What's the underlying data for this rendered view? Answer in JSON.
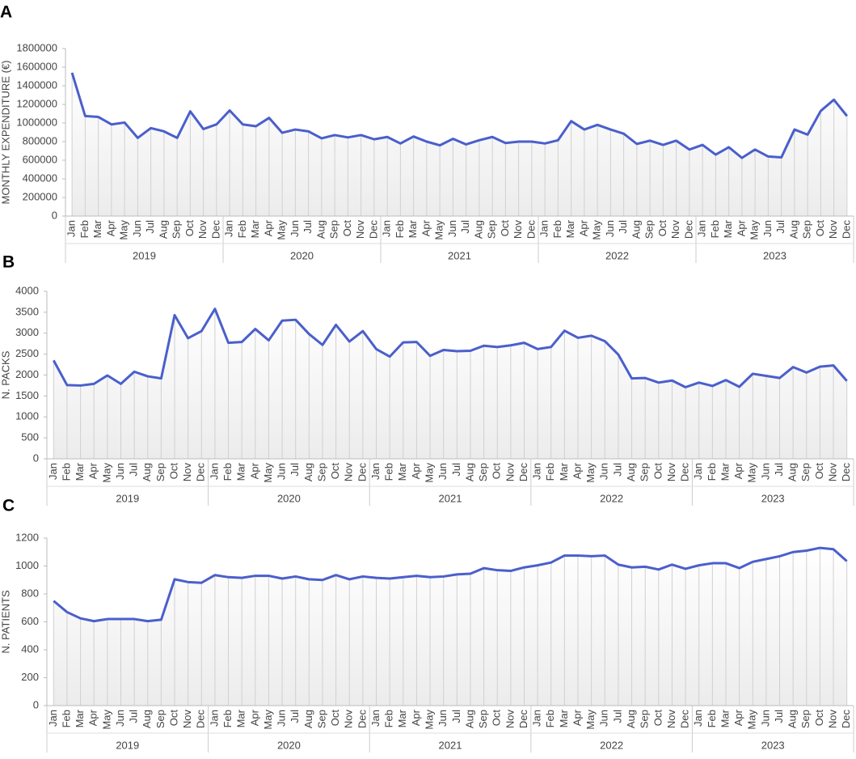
{
  "chart_data": [
    {
      "type": "line",
      "panel_label": "A",
      "y_label": "MONTHLY EXPENDITURE (€)",
      "categories": [
        "Jan",
        "Feb",
        "Mar",
        "Apr",
        "May",
        "Jun",
        "Jul",
        "Aug",
        "Sep",
        "Oct",
        "Nov",
        "Dec",
        "Jan",
        "Feb",
        "Mar",
        "Apr",
        "May",
        "Jun",
        "Jul",
        "Aug",
        "Sep",
        "Oct",
        "Nov",
        "Dec",
        "Jan",
        "Feb",
        "Mar",
        "Apr",
        "May",
        "Jun",
        "Jul",
        "Aug",
        "Sep",
        "Oct",
        "Nov",
        "Dec",
        "Jan",
        "Feb",
        "Mar",
        "Apr",
        "May",
        "Jun",
        "Jul",
        "Aug",
        "Sep",
        "Oct",
        "Nov",
        "Dec",
        "Jan",
        "Feb",
        "Mar",
        "Apr",
        "May",
        "Jun",
        "Jul",
        "Aug",
        "Sep",
        "Oct",
        "Nov",
        "Dec"
      ],
      "category_groups": [
        "2019",
        "2020",
        "2021",
        "2022",
        "2023"
      ],
      "values": [
        1540000,
        1075000,
        1065000,
        985000,
        1005000,
        840000,
        945000,
        910000,
        840000,
        1125000,
        935000,
        985000,
        1135000,
        985000,
        965000,
        1055000,
        895000,
        930000,
        910000,
        835000,
        870000,
        845000,
        870000,
        825000,
        850000,
        780000,
        855000,
        800000,
        760000,
        830000,
        770000,
        815000,
        850000,
        785000,
        800000,
        800000,
        780000,
        815000,
        1020000,
        930000,
        980000,
        930000,
        885000,
        775000,
        810000,
        765000,
        810000,
        715000,
        765000,
        660000,
        740000,
        625000,
        715000,
        640000,
        630000,
        930000,
        875000,
        1130000,
        1250000,
        1075000
      ],
      "color": "#4a5fcc",
      "ylim": [
        0,
        1800000
      ],
      "yticks": [
        0,
        200000,
        400000,
        600000,
        800000,
        1000000,
        1200000,
        1400000,
        1600000,
        1800000
      ],
      "drop_lines": true
    },
    {
      "type": "line",
      "panel_label": "B",
      "y_label": "N. PACKS",
      "categories": [
        "Jan",
        "Feb",
        "Mar",
        "Apr",
        "May",
        "Jun",
        "Jul",
        "Aug",
        "Sep",
        "Oct",
        "Nov",
        "Dec",
        "Jan",
        "Feb",
        "Mar",
        "Apr",
        "May",
        "Jun",
        "Jul",
        "Aug",
        "Sep",
        "Oct",
        "Nov",
        "Dec",
        "Jan",
        "Feb",
        "Mar",
        "Apr",
        "May",
        "Jun",
        "Jul",
        "Aug",
        "Sep",
        "Oct",
        "Nov",
        "Dec",
        "Jan",
        "Feb",
        "Mar",
        "Apr",
        "May",
        "Jun",
        "Jul",
        "Aug",
        "Sep",
        "Oct",
        "Nov",
        "Dec",
        "Jan",
        "Feb",
        "Mar",
        "Apr",
        "May",
        "Jun",
        "Jul",
        "Aug",
        "Sep",
        "Oct",
        "Nov",
        "Dec"
      ],
      "category_groups": [
        "2019",
        "2020",
        "2021",
        "2022",
        "2023"
      ],
      "values": [
        2350,
        1760,
        1750,
        1790,
        1990,
        1790,
        2080,
        1970,
        1920,
        3430,
        2880,
        3050,
        3580,
        2770,
        2790,
        3100,
        2830,
        3300,
        3320,
        2980,
        2720,
        3200,
        2800,
        3050,
        2620,
        2440,
        2780,
        2790,
        2460,
        2600,
        2570,
        2580,
        2700,
        2670,
        2710,
        2770,
        2620,
        2670,
        3060,
        2890,
        2940,
        2810,
        2490,
        1920,
        1930,
        1820,
        1870,
        1710,
        1820,
        1740,
        1880,
        1720,
        2030,
        1980,
        1930,
        2190,
        2060,
        2200,
        2230,
        1860
      ],
      "color": "#4a5fcc",
      "ylim": [
        0,
        4000
      ],
      "yticks": [
        0,
        500,
        1000,
        1500,
        2000,
        2500,
        3000,
        3500,
        4000
      ],
      "drop_lines": true
    },
    {
      "type": "line",
      "panel_label": "C",
      "y_label": "N. PATIENTS",
      "categories": [
        "Jan",
        "Feb",
        "Mar",
        "Apr",
        "May",
        "Jun",
        "Jul",
        "Aug",
        "Sep",
        "Oct",
        "Nov",
        "Dec",
        "Jan",
        "Feb",
        "Mar",
        "Apr",
        "May",
        "Jun",
        "Jul",
        "Aug",
        "Sep",
        "Oct",
        "Nov",
        "Dec",
        "Jan",
        "Feb",
        "Mar",
        "Apr",
        "May",
        "Jun",
        "Jul",
        "Aug",
        "Sep",
        "Oct",
        "Nov",
        "Dec",
        "Jan",
        "Feb",
        "Mar",
        "Apr",
        "May",
        "Jun",
        "Jul",
        "Aug",
        "Sep",
        "Oct",
        "Nov",
        "Dec",
        "Jan",
        "Feb",
        "Mar",
        "Apr",
        "May",
        "Jun",
        "Jul",
        "Aug",
        "Sep",
        "Oct",
        "Nov",
        "Dec"
      ],
      "category_groups": [
        "2019",
        "2020",
        "2021",
        "2022",
        "2023"
      ],
      "values": [
        750,
        670,
        625,
        605,
        620,
        620,
        620,
        605,
        615,
        905,
        885,
        880,
        935,
        920,
        915,
        930,
        930,
        910,
        925,
        905,
        900,
        935,
        905,
        925,
        915,
        910,
        920,
        930,
        920,
        925,
        940,
        945,
        985,
        970,
        965,
        990,
        1005,
        1025,
        1075,
        1075,
        1070,
        1075,
        1010,
        990,
        995,
        975,
        1010,
        980,
        1005,
        1020,
        1020,
        985,
        1030,
        1050,
        1070,
        1100,
        1110,
        1130,
        1120,
        1035
      ],
      "color": "#4a5fcc",
      "ylim": [
        0,
        1200
      ],
      "yticks": [
        0,
        200,
        400,
        600,
        800,
        1000,
        1200
      ],
      "drop_lines": true
    }
  ]
}
